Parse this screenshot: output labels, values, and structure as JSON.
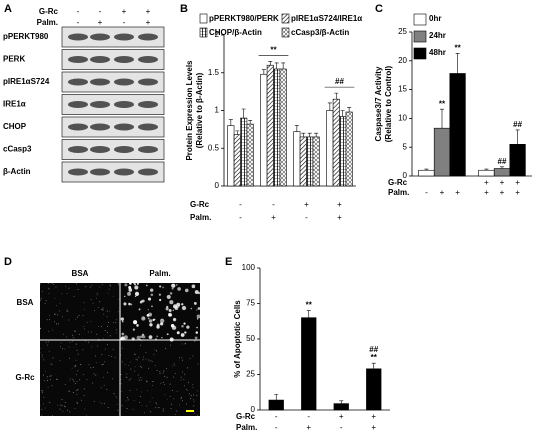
{
  "panel_letters": [
    "A",
    "B",
    "C",
    "D",
    "E"
  ],
  "blot": {
    "conditions": [
      {
        "label": "G-Rc",
        "values": [
          "-",
          "-",
          "+",
          "+"
        ]
      },
      {
        "label": "Palm.",
        "values": [
          "-",
          "+",
          "-",
          "+"
        ]
      }
    ],
    "rows": [
      "pPERKT980",
      "PERK",
      "pIRE1αS724",
      "IRE1α",
      "CHOP",
      "cCasp3",
      "β-Actin"
    ]
  },
  "micrograph": {
    "columns": [
      "BSA",
      "Palm."
    ],
    "rows": [
      "BSA",
      "G-Rc"
    ]
  },
  "chart_data": [
    {
      "type": "bar",
      "ylabel": [
        "Protein Expression Levels",
        "(Relative to β-Actin)"
      ],
      "categories": [
        null,
        null,
        null,
        null
      ],
      "series": [
        {
          "name": "pPERKT980/PERK",
          "color": "#ffffff",
          "hatch": "none",
          "values": [
            0.8,
            1.48,
            0.72,
            1.0
          ],
          "errors": [
            0.08,
            0.06,
            0.08,
            0.1
          ]
        },
        {
          "name": "pIRE1αS724/IRE1α",
          "color": "#ffffff",
          "hatch": "diagonal",
          "values": [
            0.68,
            1.6,
            0.65,
            1.15
          ],
          "errors": [
            0.05,
            0.05,
            0.05,
            0.08
          ]
        },
        {
          "name": "CHOP/β-Actin",
          "color": "#ffffff",
          "hatch": "grid",
          "values": [
            0.9,
            1.55,
            0.65,
            0.92
          ],
          "errors": [
            0.12,
            0.08,
            0.05,
            0.08
          ]
        },
        {
          "name": "cCasp3/β-Actin",
          "color": "#ffffff",
          "hatch": "cross",
          "values": [
            0.82,
            1.55,
            0.65,
            0.98
          ],
          "errors": [
            0.05,
            0.08,
            0.05,
            0.06
          ]
        }
      ],
      "annotations": [
        "",
        "**",
        "",
        "##"
      ],
      "conditions": [
        {
          "label": "G-Rc",
          "values": [
            "-",
            "-",
            "+",
            "+"
          ]
        },
        {
          "label": "Palm.",
          "values": [
            "-",
            "+",
            "-",
            "+"
          ]
        }
      ],
      "ylim": [
        0,
        2
      ],
      "yticks": [
        0,
        0.5,
        1,
        1.5,
        2
      ]
    },
    {
      "type": "bar",
      "ylabel": [
        "Caspase3/7 Activity",
        "(Relative to Control)"
      ],
      "categories": [
        null,
        null
      ],
      "series": [
        {
          "name": "0hr",
          "color": "#ffffff",
          "hatch": "none",
          "values": [
            1,
            1
          ],
          "errors": [
            0.2,
            0.2
          ],
          "annotations": [
            null,
            null
          ]
        },
        {
          "name": "24hr",
          "color": "#808080",
          "hatch": "none",
          "values": [
            8.3,
            1.3
          ],
          "errors": [
            3.3,
            0.3
          ],
          "annotations": [
            "**",
            "##"
          ]
        },
        {
          "name": "48hr",
          "color": "#000000",
          "hatch": "none",
          "values": [
            17.8,
            5.5
          ],
          "errors": [
            3.5,
            2.5
          ],
          "annotations": [
            "**",
            "##"
          ]
        }
      ],
      "conditions": [
        {
          "label": "G-Rc",
          "values": [
            null,
            null,
            null,
            "+",
            "+",
            "+"
          ]
        },
        {
          "label": "Palm.",
          "values": [
            "-",
            "+",
            "+",
            "+",
            "+",
            "+"
          ]
        }
      ],
      "ylim": [
        0,
        25
      ],
      "yticks": [
        0,
        5,
        10,
        15,
        20,
        25
      ]
    },
    {
      "type": "bar",
      "ylabel": [
        "% of Apoptotic Cells"
      ],
      "categories": [
        null,
        null,
        null,
        null
      ],
      "series": [
        {
          "name": null,
          "color": "#000000",
          "hatch": "none",
          "values": [
            7,
            65,
            4.5,
            29
          ],
          "errors": [
            4,
            5,
            2,
            4
          ]
        }
      ],
      "annotations": [
        [],
        [
          "**"
        ],
        [],
        [
          "##",
          "**"
        ]
      ],
      "conditions": [
        {
          "label": "G-Rc",
          "values": [
            "-",
            "-",
            "+",
            "+"
          ]
        },
        {
          "label": "Palm.",
          "values": [
            "-",
            "+",
            "-",
            "+"
          ]
        }
      ],
      "ylim": [
        0,
        100
      ],
      "yticks": [
        0,
        25,
        50,
        75,
        100
      ]
    }
  ]
}
